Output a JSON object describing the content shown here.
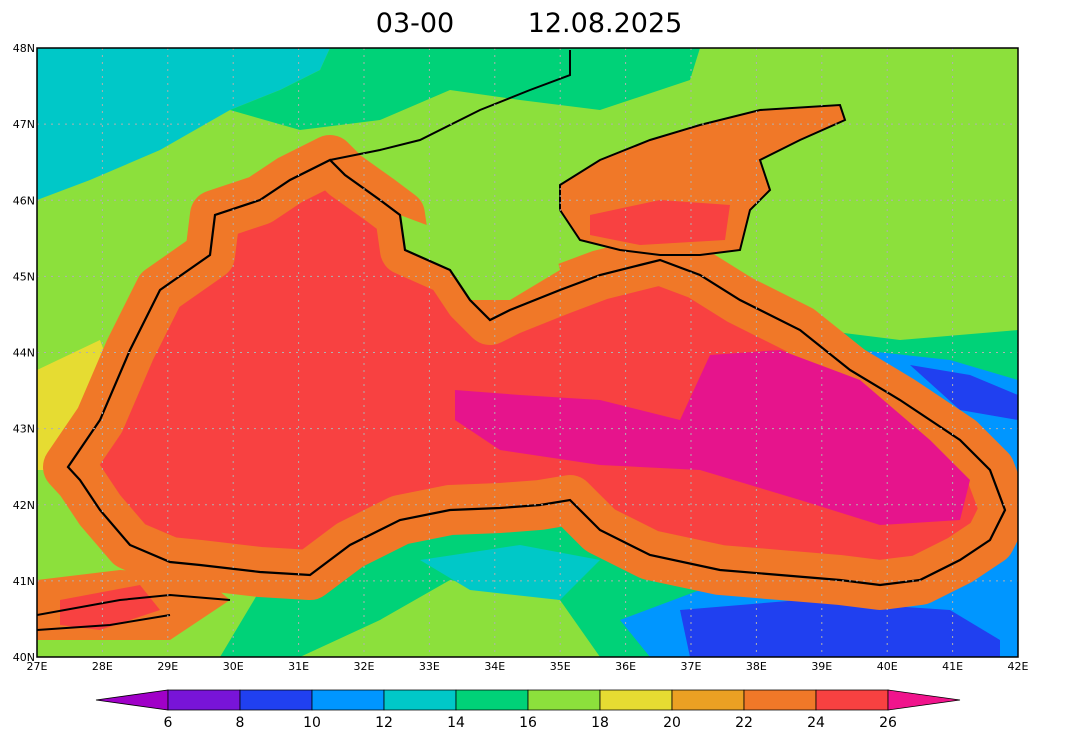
{
  "title": {
    "time": "03-00",
    "date": "12.08.2025"
  },
  "map": {
    "lat_labels": [
      "48N",
      "47N",
      "46N",
      "45N",
      "44N",
      "43N",
      "42N",
      "41N",
      "40N"
    ],
    "lon_labels": [
      "27E",
      "28E",
      "29E",
      "30E",
      "31E",
      "32E",
      "33E",
      "34E",
      "35E",
      "36E",
      "37E",
      "38E",
      "39E",
      "40E",
      "41E",
      "42E"
    ]
  },
  "colorbar": {
    "labels": [
      6,
      8,
      10,
      12,
      14,
      16,
      18,
      20,
      22,
      24,
      26
    ],
    "colors": [
      "#a000c8",
      "#7814d8",
      "#2040f0",
      "#0096ff",
      "#00c8c8",
      "#00d278",
      "#8ce03c",
      "#e6dc32",
      "#eba023",
      "#f07828",
      "#f84141",
      "#f0148c"
    ]
  }
}
